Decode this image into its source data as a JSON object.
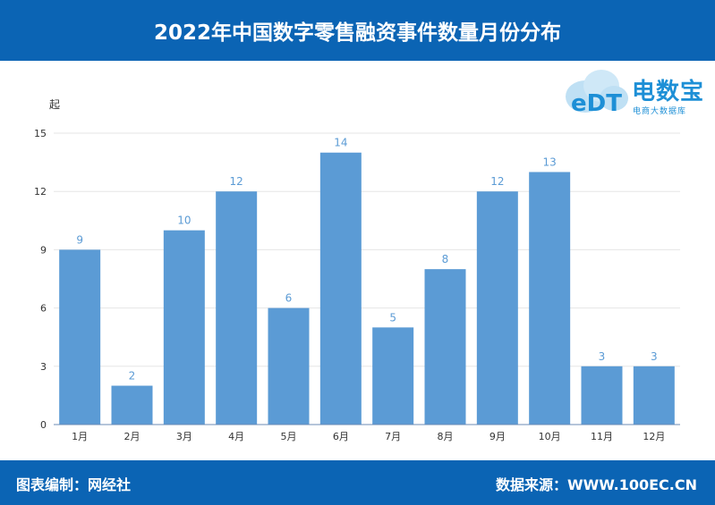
{
  "header": {
    "title": "2022年中国数字零售融资事件数量月份分布"
  },
  "footer": {
    "editor": "图表编制：网经社",
    "source": "数据来源：WWW.100EC.CN"
  },
  "logo": {
    "name": "电数宝",
    "subtitle": "电商大数据库",
    "mark": "eDT"
  },
  "chart_data": {
    "type": "bar",
    "unit_label": "起",
    "categories": [
      "1月",
      "2月",
      "3月",
      "4月",
      "5月",
      "6月",
      "7月",
      "8月",
      "9月",
      "10月",
      "11月",
      "12月"
    ],
    "values": [
      9,
      2,
      10,
      12,
      6,
      14,
      5,
      8,
      12,
      13,
      3,
      3
    ],
    "ylim": [
      0,
      15
    ],
    "yticks": [
      0,
      3,
      6,
      9,
      12,
      15
    ],
    "grid": true,
    "bar_color": "#5b9bd5",
    "label_color": "#5b9bd5"
  }
}
